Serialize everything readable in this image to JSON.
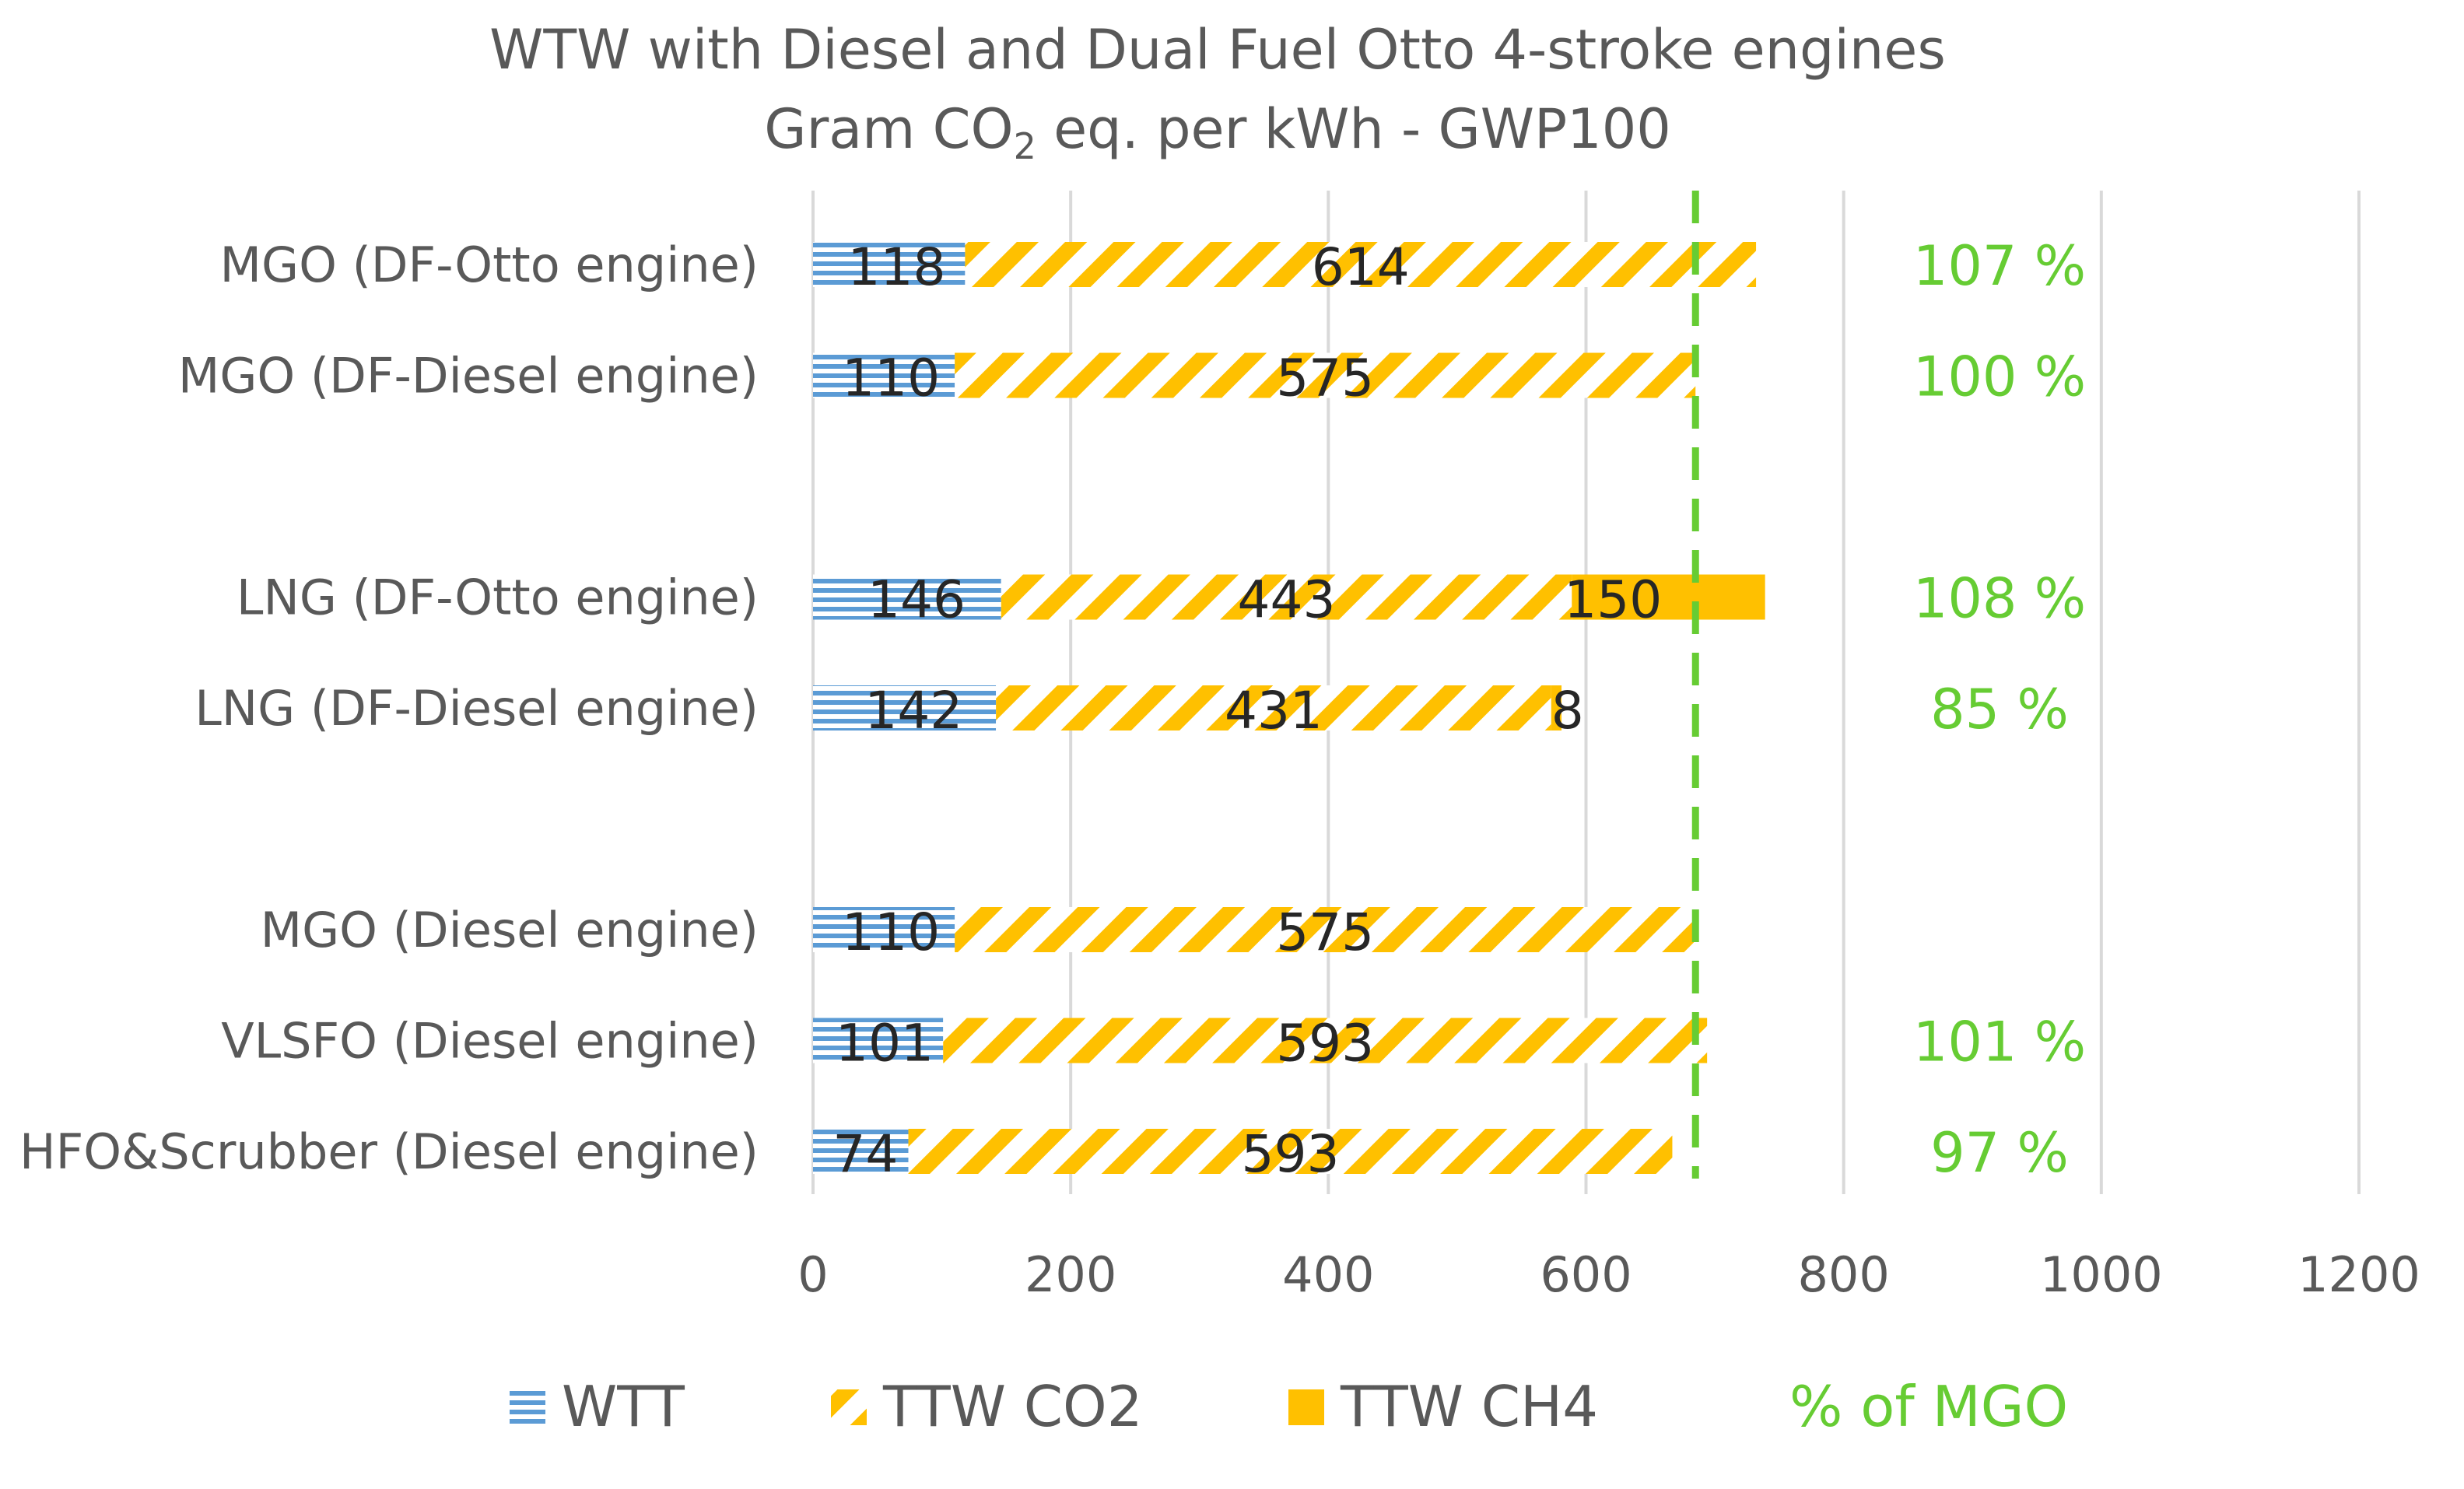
{
  "chart_data": {
    "type": "bar",
    "orientation": "horizontal",
    "stacked": true,
    "title": "WTW with Diesel and Dual Fuel Otto 4-stroke engines",
    "subtitle": {
      "prefix": "Gram CO",
      "subscript": "2",
      "suffix": " eq. per kWh - GWP100"
    },
    "categories": [
      "MGO (DF-Otto engine)",
      "MGO (DF-Diesel engine)",
      "",
      "LNG (DF-Otto engine)",
      "LNG (DF-Diesel engine)",
      "",
      "MGO (Diesel engine)",
      "VLSFO (Diesel engine)",
      "HFO&Scrubber (Diesel engine)"
    ],
    "series": [
      {
        "name": "WTT",
        "color": "#5b9bd5",
        "pattern": "horizontal-lines",
        "values": [
          118,
          110,
          null,
          146,
          142,
          null,
          110,
          101,
          74
        ]
      },
      {
        "name": "TTW CO2",
        "color": "#ffc000",
        "pattern": "diagonal-stripes",
        "values": [
          614,
          575,
          null,
          443,
          431,
          null,
          575,
          593,
          593
        ]
      },
      {
        "name": "TTW CH4",
        "color": "#ffc000",
        "pattern": "solid",
        "values": [
          null,
          null,
          null,
          150,
          8,
          null,
          null,
          null,
          null
        ]
      }
    ],
    "data_labels": {
      "WTT": [
        "118",
        "110",
        "",
        "146",
        "142",
        "",
        "110",
        "101",
        "74"
      ],
      "TTW CO2": [
        "614",
        "575",
        "",
        "443",
        "431",
        "",
        "575",
        "593",
        "593"
      ],
      "TTW CH4": [
        "",
        "",
        "",
        "150",
        "8",
        "",
        "",
        "",
        ""
      ]
    },
    "pct_of_mgo": {
      "name": "% of MGO",
      "color": "#66cc33",
      "labels": [
        "107 %",
        "100 %",
        "",
        "108 %",
        "85 %",
        "",
        "",
        "101 %",
        "97 %"
      ]
    },
    "reference_line": {
      "value": 685,
      "color": "#66cc33",
      "style": "dashed"
    },
    "xlim": [
      0,
      1200
    ],
    "xticks": [
      0,
      200,
      400,
      600,
      800,
      1000,
      1200
    ],
    "xtick_labels": [
      "0",
      "200",
      "400",
      "600",
      "800",
      "1000",
      "1200"
    ],
    "grid": "vertical",
    "legend": {
      "position": "bottom",
      "entries": [
        "WTT",
        "TTW CO2",
        "TTW CH4",
        "% of MGO"
      ]
    }
  }
}
